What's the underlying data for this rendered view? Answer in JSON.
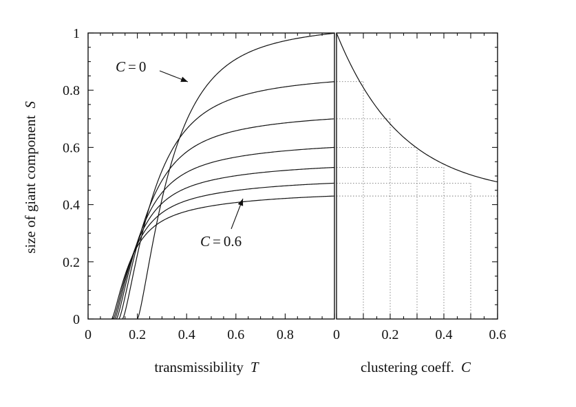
{
  "chart_data": [
    {
      "type": "line",
      "xlabel_text": "transmissibility",
      "xlabel_var": "T",
      "ylabel_text": "size of giant component",
      "ylabel_var": "S",
      "xlim": [
        0,
        1
      ],
      "ylim": [
        0,
        1
      ],
      "xticks": [
        0,
        0.2,
        0.4,
        0.6,
        0.8
      ],
      "xtick_labels": [
        "0",
        "0.2",
        "0.4",
        "0.6",
        "0.8"
      ],
      "yticks": [
        0,
        0.2,
        0.4,
        0.6,
        0.8,
        1
      ],
      "ytick_labels": [
        "0",
        "0.2",
        "0.4",
        "0.6",
        "0.8",
        "1"
      ],
      "grid": false,
      "series": [
        {
          "C": 0,
          "T_c": 0.2,
          "S_max": 1.0,
          "x": [
            0.2,
            0.25,
            0.3,
            0.35,
            0.4,
            0.5,
            0.6,
            0.8,
            1.0
          ],
          "y": [
            0.0,
            0.43,
            0.61,
            0.73,
            0.82,
            0.91,
            0.95,
            0.98,
            0.99
          ]
        },
        {
          "C": 0.1,
          "T_c": 0.14,
          "S_max": 0.83,
          "x": [
            0.14,
            0.2,
            0.25,
            0.3,
            0.4,
            0.5,
            0.6,
            0.8,
            1.0
          ],
          "y": [
            0.0,
            0.33,
            0.48,
            0.58,
            0.7,
            0.76,
            0.79,
            0.82,
            0.83
          ]
        },
        {
          "C": 0.2,
          "T_c": 0.125,
          "S_max": 0.7,
          "x": [
            0.125,
            0.2,
            0.25,
            0.3,
            0.4,
            0.5,
            0.6,
            0.8,
            1.0
          ],
          "y": [
            0.0,
            0.36,
            0.47,
            0.55,
            0.63,
            0.67,
            0.68,
            0.69,
            0.69
          ]
        },
        {
          "C": 0.3,
          "T_c": 0.115,
          "S_max": 0.6,
          "x": [
            0.115,
            0.2,
            0.25,
            0.3,
            0.4,
            0.5,
            0.6,
            0.8,
            1.0
          ],
          "y": [
            0.0,
            0.37,
            0.46,
            0.52,
            0.58,
            0.59,
            0.6,
            0.6,
            0.6
          ]
        },
        {
          "C": 0.4,
          "T_c": 0.108,
          "S_max": 0.53,
          "x": [
            0.108,
            0.2,
            0.25,
            0.3,
            0.4,
            0.5,
            0.6,
            0.8,
            1.0
          ],
          "y": [
            0.0,
            0.37,
            0.44,
            0.49,
            0.52,
            0.53,
            0.53,
            0.53,
            0.53
          ]
        },
        {
          "C": 0.5,
          "T_c": 0.102,
          "S_max": 0.475,
          "x": [
            0.102,
            0.2,
            0.25,
            0.3,
            0.4,
            0.5,
            0.6,
            0.8,
            1.0
          ],
          "y": [
            0.0,
            0.37,
            0.43,
            0.46,
            0.47,
            0.475,
            0.475,
            0.475,
            0.475
          ]
        },
        {
          "C": 0.6,
          "T_c": 0.096,
          "S_max": 0.43,
          "x": [
            0.096,
            0.2,
            0.25,
            0.3,
            0.4,
            0.5,
            0.6,
            0.8,
            1.0
          ],
          "y": [
            0.0,
            0.36,
            0.41,
            0.425,
            0.43,
            0.43,
            0.43,
            0.43,
            0.43
          ]
        }
      ],
      "annotations": [
        {
          "var": "C",
          "op": "=",
          "value": "0",
          "points_to": {
            "x": 0.4,
            "y": 0.83
          }
        },
        {
          "var": "C",
          "op": "=",
          "value": "0.6",
          "points_to": {
            "x": 0.62,
            "y": 0.43
          }
        }
      ]
    },
    {
      "type": "line",
      "xlabel_text": "clustering coeff.",
      "xlabel_var": "C",
      "xlim": [
        0,
        0.6
      ],
      "ylim": [
        0,
        1
      ],
      "xticks": [
        0,
        0.2,
        0.4,
        0.6
      ],
      "xtick_labels": [
        "0",
        "0.2",
        "0.4",
        "0.6"
      ],
      "grid": "dotted lines at each C value and its S value",
      "series": [
        {
          "x": [
            0,
            0.1,
            0.2,
            0.3,
            0.4,
            0.5,
            0.6
          ],
          "y": [
            1.0,
            0.83,
            0.7,
            0.6,
            0.53,
            0.475,
            0.43
          ]
        }
      ]
    }
  ]
}
